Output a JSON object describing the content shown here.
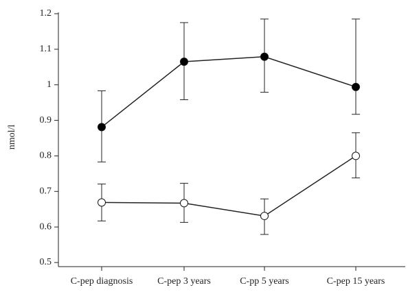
{
  "chart_data": {
    "type": "line",
    "y_label": "nmol/l",
    "categories": [
      "C-pep diagnosis",
      "C-pep 3 years",
      "C-pp 5 years",
      "C-pep 15 years"
    ],
    "series": [
      {
        "color": "#000000",
        "values": [
          0.881,
          1.065,
          1.079,
          0.994
        ],
        "lower": [
          0.783,
          0.958,
          0.979,
          0.917
        ],
        "upper": [
          0.983,
          1.175,
          1.185,
          1.185
        ]
      },
      {
        "color": "#ffffff",
        "values": [
          0.669,
          0.667,
          0.631,
          0.8
        ],
        "lower": [
          0.617,
          0.613,
          0.579,
          0.738
        ],
        "upper": [
          0.721,
          0.723,
          0.679,
          0.865
        ]
      }
    ],
    "ylim": [
      0.5,
      1.2
    ],
    "yticks": [
      0.5,
      0.6,
      0.7,
      0.8,
      0.9,
      1,
      1.1,
      1.2
    ]
  }
}
